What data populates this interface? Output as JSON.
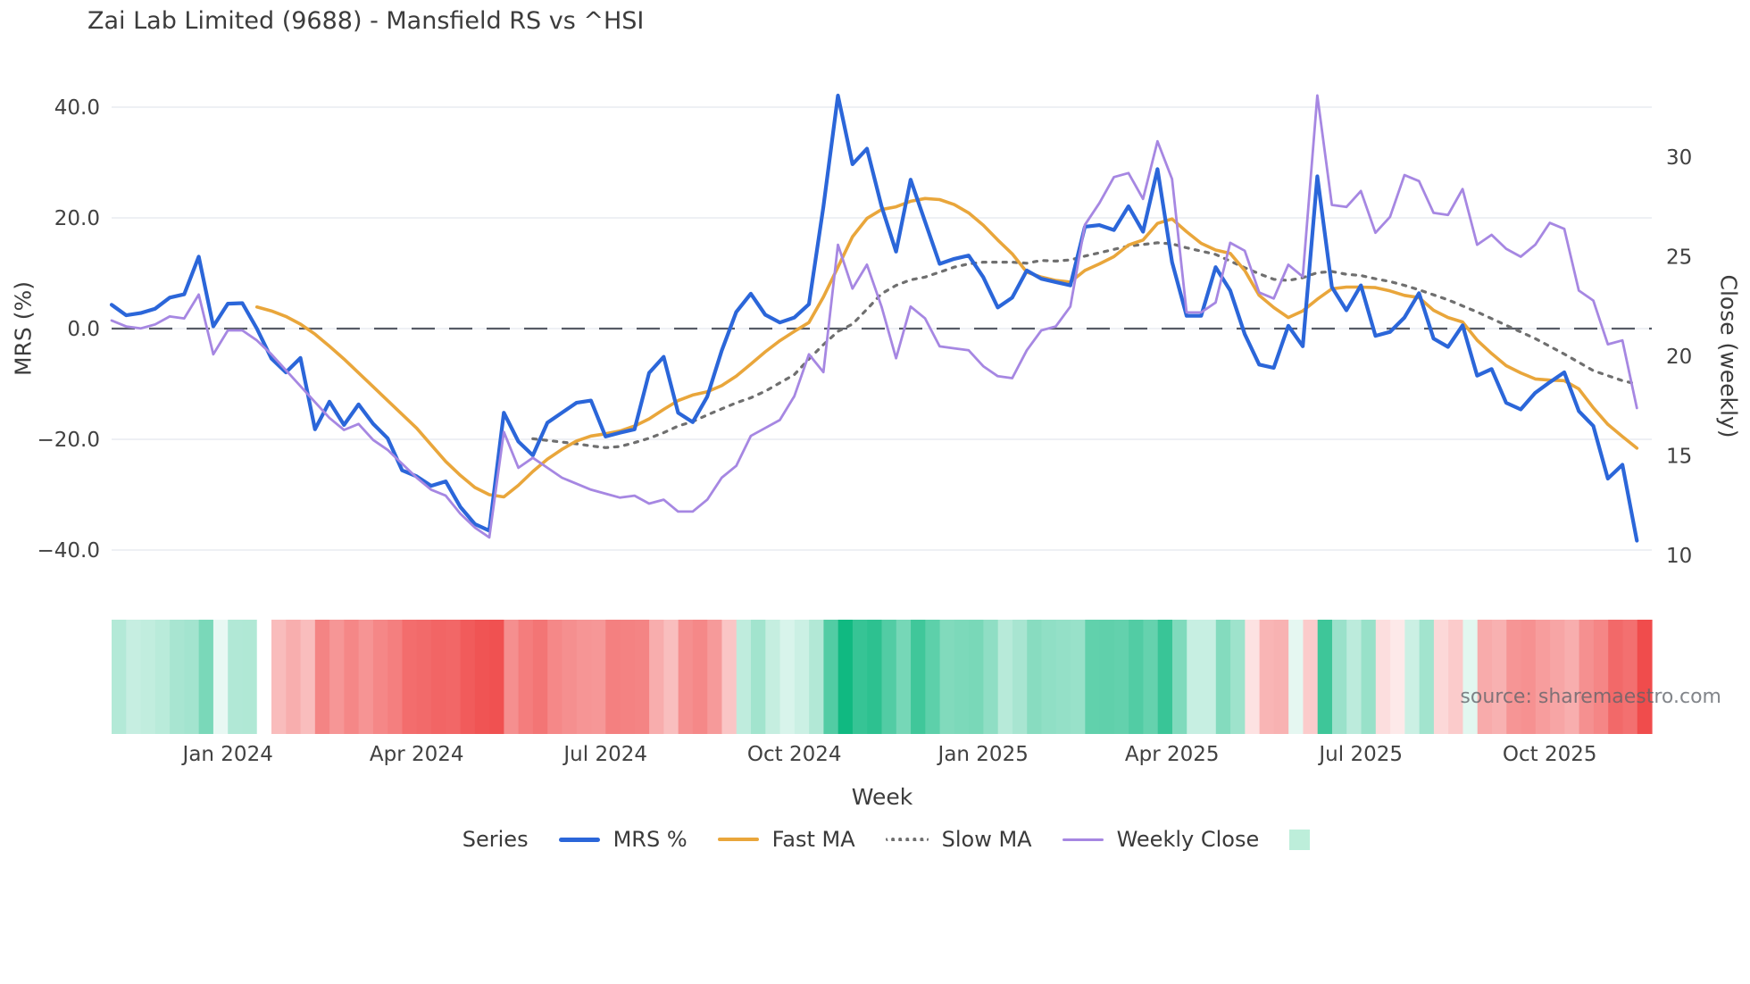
{
  "title": "Zai Lab Limited (9688) - Mansfield RS vs ^HSI",
  "source": "source: sharemaestro.com",
  "axes": {
    "left_label": "MRS (%)",
    "right_label": "Close (weekly)",
    "x_label": "Week",
    "left_tick_labels": [
      "40.0",
      "20.0",
      "0.0",
      "−20.0",
      "−40.0"
    ],
    "left_tick_values": [
      40,
      20,
      0,
      -20,
      -40
    ],
    "right_tick_labels": [
      "30",
      "25",
      "20",
      "15",
      "10"
    ],
    "right_tick_values": [
      30,
      25,
      20,
      15,
      10
    ]
  },
  "legend": {
    "title": "Series",
    "items": [
      {
        "label": "MRS %",
        "swatch": "line-blue"
      },
      {
        "label": "Fast MA",
        "swatch": "line-orange"
      },
      {
        "label": "Slow MA",
        "swatch": "line-dotted-gray"
      },
      {
        "label": "Weekly Close",
        "swatch": "line-purple"
      },
      {
        "label": "",
        "swatch": "green-patch"
      }
    ]
  },
  "colors": {
    "mrs": "#2b66d9",
    "fast_ma": "#e9a63b",
    "slow_ma": "#6f6f6f",
    "close": "#a687e2",
    "zero_line": "#565b66",
    "gridline": "#eef0f4",
    "heat_positive": "#10b981",
    "heat_negative": "#ef4444",
    "legend_patch": "#bdeeda",
    "text": "#3a3a3a"
  },
  "chart_data": {
    "type": "line",
    "title": "Zai Lab Limited (9688) - Mansfield RS vs ^HSI",
    "xlabel": "Week",
    "ylabel_left": "MRS (%)",
    "ylabel_right": "Close (weekly)",
    "n_points": 106,
    "x_ticks": [
      {
        "week_index": 8,
        "label": "Jan 2024"
      },
      {
        "week_index": 21,
        "label": "Apr 2024"
      },
      {
        "week_index": 34,
        "label": "Jul 2024"
      },
      {
        "week_index": 47,
        "label": "Oct 2024"
      },
      {
        "week_index": 60,
        "label": "Jan 2025"
      },
      {
        "week_index": 73,
        "label": "Apr 2025"
      },
      {
        "week_index": 86,
        "label": "Jul 2025"
      },
      {
        "week_index": 99,
        "label": "Oct 2025"
      }
    ],
    "left_ylim": [
      -47.2,
      47.3
    ],
    "right_ylim": [
      8.3,
      34.6
    ],
    "grid": true,
    "legend_position": "bottom",
    "series": [
      {
        "name": "MRS %",
        "axis": "left",
        "color": "#2b66d9",
        "style": "solid",
        "width": 4.2,
        "values": [
          4.3,
          2.4,
          2.8,
          3.6,
          5.6,
          6.2,
          13.0,
          0.4,
          4.5,
          4.6,
          0.0,
          -5.4,
          -7.9,
          -5.3,
          -18.2,
          -13.2,
          -17.4,
          -13.7,
          -17.2,
          -19.8,
          -25.6,
          -26.7,
          -28.4,
          -27.6,
          -32.2,
          -35.3,
          -36.5,
          -15.2,
          -20.4,
          -22.9,
          -17.0,
          -15.2,
          -13.4,
          -13.0,
          -19.5,
          -18.8,
          -18.2,
          -8.0,
          -5.1,
          -15.2,
          -16.9,
          -12.3,
          -4.0,
          3.0,
          6.3,
          2.5,
          1.1,
          2.0,
          4.4,
          22.0,
          42.1,
          29.7,
          32.5,
          22.1,
          13.9,
          26.9,
          19.3,
          11.7,
          12.6,
          13.2,
          9.3,
          3.8,
          5.6,
          10.5,
          9.0,
          8.4,
          7.8,
          18.4,
          18.7,
          17.8,
          22.1,
          17.5,
          28.8,
          12.0,
          2.3,
          2.3,
          11.1,
          6.9,
          -1.0,
          -6.5,
          -7.1,
          0.5,
          -3.2,
          27.5,
          7.5,
          3.3,
          7.8,
          -1.3,
          -0.6,
          2.0,
          6.4,
          -1.8,
          -3.3,
          0.6,
          -8.5,
          -7.3,
          -13.4,
          -14.6,
          -11.6,
          -9.7,
          -7.9,
          -14.9,
          -17.6,
          -27.1,
          -24.6,
          -38.3
        ]
      },
      {
        "name": "Fast MA",
        "axis": "left",
        "color": "#e9a63b",
        "style": "solid",
        "width": 3.6,
        "values": [
          null,
          null,
          null,
          null,
          null,
          null,
          null,
          null,
          null,
          null,
          3.9,
          3.2,
          2.2,
          0.8,
          -1.0,
          -3.2,
          -5.5,
          -8.0,
          -10.5,
          -13.0,
          -15.5,
          -18.0,
          -21.0,
          -24.0,
          -26.5,
          -28.7,
          -30.0,
          -30.4,
          -28.3,
          -25.8,
          -23.6,
          -21.8,
          -20.3,
          -19.4,
          -19.0,
          -18.5,
          -17.6,
          -16.3,
          -14.6,
          -13.0,
          -12.0,
          -11.4,
          -10.3,
          -8.6,
          -6.4,
          -4.2,
          -2.2,
          -0.5,
          1.1,
          5.7,
          11.1,
          16.6,
          19.9,
          21.5,
          22.0,
          23.0,
          23.5,
          23.3,
          22.4,
          20.9,
          18.7,
          16.0,
          13.5,
          10.2,
          9.3,
          8.7,
          8.4,
          10.5,
          11.7,
          13.0,
          15.1,
          16.0,
          19.0,
          19.8,
          17.5,
          15.4,
          14.2,
          13.6,
          10.5,
          6.0,
          3.8,
          2.0,
          3.2,
          5.3,
          7.2,
          7.5,
          7.5,
          7.4,
          6.8,
          6.0,
          5.6,
          3.3,
          2.0,
          1.2,
          -2.1,
          -4.5,
          -6.7,
          -8.0,
          -9.1,
          -9.3,
          -9.4,
          -10.9,
          -14.3,
          -17.3,
          -19.5,
          -21.6
        ]
      },
      {
        "name": "Slow MA",
        "axis": "left",
        "color": "#6f6f6f",
        "style": "dotted",
        "width": 3.2,
        "values": [
          null,
          null,
          null,
          null,
          null,
          null,
          null,
          null,
          null,
          null,
          null,
          null,
          null,
          null,
          null,
          null,
          null,
          null,
          null,
          null,
          null,
          null,
          null,
          null,
          null,
          null,
          null,
          null,
          null,
          -19.9,
          -20.2,
          -20.5,
          -20.8,
          -21.2,
          -21.5,
          -21.3,
          -20.6,
          -19.8,
          -18.8,
          -17.6,
          -16.8,
          -15.6,
          -14.5,
          -13.4,
          -12.5,
          -11.3,
          -9.8,
          -8.3,
          -5.5,
          -2.9,
          -0.5,
          0.8,
          3.5,
          6.3,
          7.8,
          8.8,
          9.3,
          10.2,
          11.1,
          11.7,
          12.0,
          12.0,
          12.0,
          11.8,
          12.3,
          12.2,
          12.4,
          13.1,
          13.7,
          14.3,
          14.9,
          15.2,
          15.5,
          15.3,
          14.6,
          14.0,
          13.4,
          12.2,
          11.0,
          9.9,
          8.9,
          8.7,
          9.2,
          10.1,
          10.3,
          9.8,
          9.6,
          9.0,
          8.5,
          7.8,
          7.0,
          6.1,
          5.2,
          4.1,
          3.0,
          1.8,
          0.6,
          -0.6,
          -1.8,
          -3.2,
          -4.6,
          -6.1,
          -7.6,
          -8.5,
          -9.4,
          -10.0
        ]
      },
      {
        "name": "Weekly Close",
        "axis": "right",
        "color": "#a687e2",
        "style": "solid",
        "width": 2.8,
        "values": [
          21.8,
          21.5,
          21.4,
          21.6,
          22.0,
          21.9,
          23.1,
          20.1,
          21.3,
          21.3,
          20.8,
          20.1,
          19.3,
          18.5,
          17.7,
          16.9,
          16.3,
          16.6,
          15.8,
          15.3,
          14.6,
          13.9,
          13.3,
          13.0,
          12.1,
          11.4,
          10.9,
          16.2,
          14.4,
          14.9,
          14.4,
          13.9,
          13.6,
          13.3,
          13.1,
          12.9,
          13.0,
          12.6,
          12.8,
          12.2,
          12.2,
          12.8,
          13.9,
          14.5,
          16.0,
          16.4,
          16.8,
          18.0,
          20.1,
          19.2,
          25.6,
          23.4,
          24.6,
          22.5,
          19.9,
          22.5,
          21.9,
          20.5,
          20.4,
          20.3,
          19.5,
          19.0,
          18.9,
          20.3,
          21.3,
          21.5,
          22.5,
          26.6,
          27.7,
          29.0,
          29.2,
          27.9,
          30.8,
          28.9,
          22.2,
          22.2,
          22.7,
          25.7,
          25.3,
          23.2,
          22.9,
          24.6,
          24.0,
          33.1,
          27.6,
          27.5,
          28.3,
          26.2,
          27.0,
          29.1,
          28.8,
          27.2,
          27.1,
          28.4,
          25.6,
          26.1,
          25.4,
          25.0,
          25.6,
          26.7,
          26.4,
          23.3,
          22.8,
          20.6,
          20.8,
          17.4
        ]
      }
    ],
    "heatmap": {
      "encodes": "MRS % sign and magnitude per week",
      "positive_color": "#10b981",
      "negative_color": "#ef4444",
      "magnitude_scale": 42,
      "intensity": "sqrt(abs(value)/scale)"
    }
  }
}
